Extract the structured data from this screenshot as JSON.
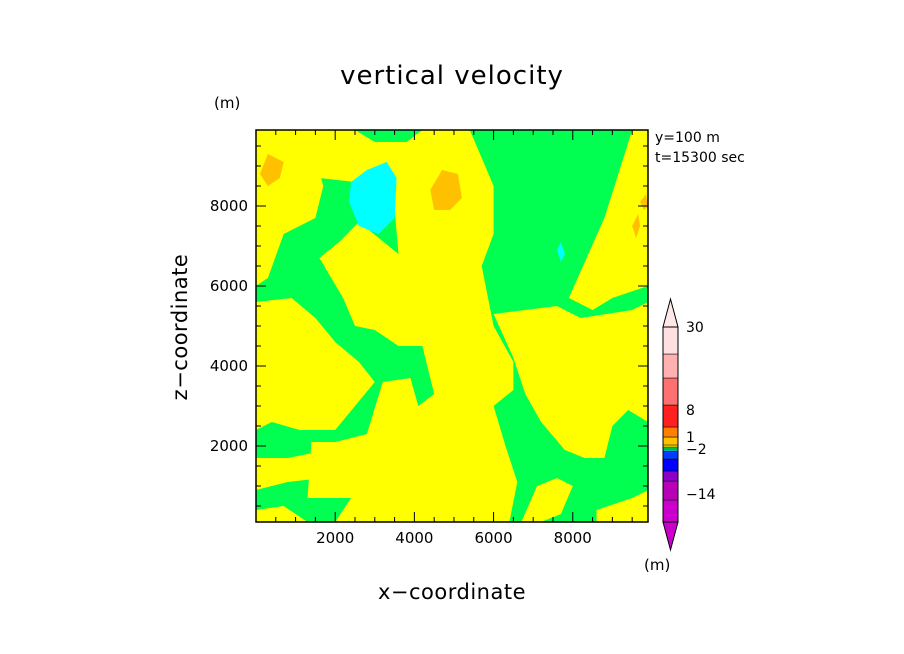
{
  "chart_data": {
    "type": "filled-contour",
    "title": "vertical velocity",
    "xlabel": "x−coordinate",
    "ylabel": "z−coordinate",
    "x_unit": "(m)",
    "y_unit": "(m)",
    "annotations": [
      "y=100 m",
      "t=15300 sec"
    ],
    "xlim": [
      0,
      9900
    ],
    "ylim": [
      100,
      9900
    ],
    "x_ticks": [
      2000,
      4000,
      6000,
      8000
    ],
    "x_tick_labels": [
      "2000",
      "4000",
      "6000",
      "8000"
    ],
    "y_ticks": [
      2000,
      4000,
      6000,
      8000
    ],
    "y_tick_labels": [
      "2000",
      "4000",
      "6000",
      "8000"
    ],
    "colorbar": {
      "orientation": "vertical",
      "labels": [
        {
          "value": 30,
          "text": "30"
        },
        {
          "value": 8,
          "text": "8"
        },
        {
          "value": 1,
          "text": "1"
        },
        {
          "value": -2,
          "text": "−2"
        },
        {
          "value": -14,
          "text": "−14"
        }
      ],
      "levels_bottom_to_top": [
        {
          "color": "#cc00cc"
        },
        {
          "color": "#b900b9"
        },
        {
          "color": "#8c00c8"
        },
        {
          "color": "#0000ff"
        },
        {
          "color": "#003cff"
        },
        {
          "color": "#00ffff"
        },
        {
          "color": "#00ff50"
        },
        {
          "color": "#ffff00"
        },
        {
          "color": "#ffc000"
        },
        {
          "color": "#ff8000"
        },
        {
          "color": "#ff2020"
        },
        {
          "color": "#ff7070"
        },
        {
          "color": "#ffb0b0"
        },
        {
          "color": "#ffe0e0"
        }
      ]
    },
    "field": {
      "background_color": "#00ff50",
      "regions": [
        {
          "name": "updraft-yellow",
          "color": "#ffff00",
          "polygons": [
            [
              [
                0,
                9900
              ],
              [
                1300,
                9900
              ],
              [
                1700,
                8500
              ],
              [
                1500,
                7700
              ],
              [
                700,
                7300
              ],
              [
                300,
                6200
              ],
              [
                0,
                6000
              ]
            ],
            [
              [
                1100,
                9900
              ],
              [
                2500,
                9900
              ],
              [
                3000,
                9600
              ],
              [
                3800,
                9600
              ],
              [
                4200,
                9900
              ],
              [
                5400,
                9900
              ],
              [
                6000,
                8500
              ],
              [
                6000,
                7300
              ],
              [
                5700,
                6500
              ],
              [
                6000,
                5000
              ],
              [
                6500,
                4100
              ],
              [
                6500,
                3400
              ],
              [
                6000,
                3000
              ],
              [
                6300,
                2000
              ],
              [
                6600,
                1100
              ],
              [
                6400,
                100
              ],
              [
                2000,
                100
              ],
              [
                2400,
                700
              ],
              [
                1300,
                700
              ],
              [
                1400,
                2100
              ],
              [
                2000,
                2100
              ],
              [
                2800,
                2300
              ],
              [
                3200,
                3600
              ],
              [
                3900,
                3700
              ],
              [
                4100,
                3000
              ],
              [
                4500,
                3300
              ],
              [
                4200,
                4500
              ],
              [
                3600,
                4500
              ],
              [
                3000,
                4900
              ],
              [
                2500,
                5000
              ],
              [
                2200,
                5700
              ],
              [
                1600,
                6700
              ],
              [
                2100,
                7100
              ],
              [
                2600,
                7600
              ],
              [
                3600,
                6800
              ],
              [
                3500,
                7900
              ],
              [
                2500,
                8600
              ],
              [
                1600,
                8700
              ]
            ],
            [
              [
                0,
                5600
              ],
              [
                900,
                5700
              ],
              [
                1500,
                5200
              ],
              [
                2000,
                4600
              ],
              [
                2600,
                4100
              ],
              [
                3000,
                3600
              ],
              [
                2500,
                3000
              ],
              [
                2000,
                2400
              ],
              [
                1100,
                2400
              ],
              [
                400,
                2600
              ],
              [
                0,
                2400
              ]
            ],
            [
              [
                0,
                1700
              ],
              [
                800,
                1700
              ],
              [
                1800,
                1900
              ],
              [
                2200,
                1500
              ],
              [
                1700,
                1200
              ],
              [
                800,
                1100
              ],
              [
                0,
                900
              ]
            ],
            [
              [
                0,
                400
              ],
              [
                700,
                500
              ],
              [
                1300,
                100
              ],
              [
                0,
                100
              ]
            ],
            [
              [
                6000,
                5300
              ],
              [
                6800,
                5400
              ],
              [
                7600,
                5500
              ],
              [
                8200,
                5200
              ],
              [
                9500,
                5400
              ],
              [
                9900,
                5600
              ],
              [
                9900,
                2600
              ],
              [
                9400,
                2900
              ],
              [
                9000,
                2500
              ],
              [
                8800,
                1700
              ],
              [
                8300,
                1700
              ],
              [
                7800,
                1900
              ],
              [
                7200,
                2600
              ],
              [
                6800,
                3300
              ],
              [
                6500,
                4200
              ]
            ],
            [
              [
                7900,
                5700
              ],
              [
                8800,
                7700
              ],
              [
                9500,
                9900
              ],
              [
                9900,
                9900
              ],
              [
                9900,
                6000
              ],
              [
                9000,
                5700
              ],
              [
                8500,
                5400
              ]
            ],
            [
              [
                7100,
                1000
              ],
              [
                7600,
                1200
              ],
              [
                8000,
                1000
              ],
              [
                7700,
                300
              ],
              [
                7200,
                100
              ],
              [
                6700,
                100
              ]
            ],
            [
              [
                8600,
                400
              ],
              [
                9500,
                700
              ],
              [
                9900,
                900
              ],
              [
                9900,
                100
              ],
              [
                8600,
                100
              ]
            ]
          ]
        },
        {
          "name": "downdraft-cyan",
          "color": "#00ffff",
          "polygons": [
            [
              [
                2350,
                8100
              ],
              [
                2600,
                7500
              ],
              [
                3100,
                7300
              ],
              [
                3500,
                7700
              ],
              [
                3550,
                8700
              ],
              [
                3300,
                9100
              ],
              [
                2800,
                8900
              ],
              [
                2400,
                8600
              ]
            ],
            [
              [
                7600,
                6900
              ],
              [
                7700,
                7100
              ],
              [
                7800,
                6800
              ],
              [
                7700,
                6600
              ]
            ]
          ]
        },
        {
          "name": "updraft-orange",
          "color": "#ffc000",
          "polygons": [
            [
              [
                100,
                8800
              ],
              [
                300,
                9300
              ],
              [
                700,
                9100
              ],
              [
                600,
                8700
              ],
              [
                300,
                8500
              ]
            ],
            [
              [
                4400,
                8400
              ],
              [
                4700,
                8900
              ],
              [
                5100,
                8800
              ],
              [
                5200,
                8200
              ],
              [
                4900,
                7900
              ],
              [
                4500,
                7900
              ]
            ],
            [
              [
                9500,
                7500
              ],
              [
                9650,
                7800
              ],
              [
                9700,
                7500
              ],
              [
                9600,
                7200
              ]
            ],
            [
              [
                9700,
                8100
              ],
              [
                9850,
                8300
              ],
              [
                9900,
                8000
              ],
              [
                9800,
                7900
              ]
            ]
          ]
        }
      ]
    }
  }
}
